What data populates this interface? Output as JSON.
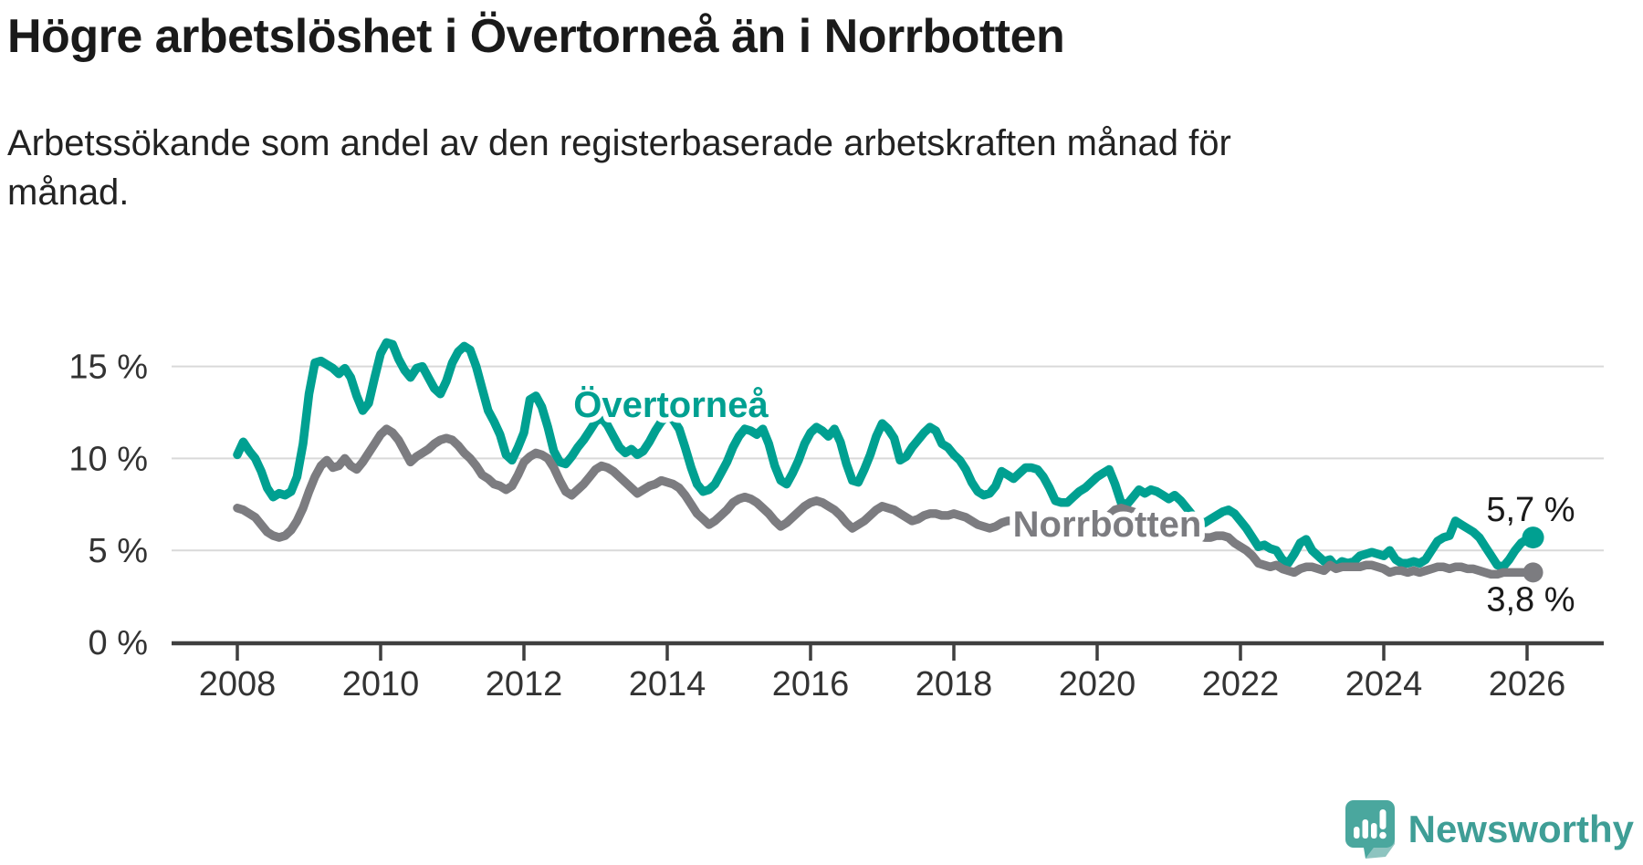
{
  "header": {
    "title": "Högre arbetslöshet i Övertorneå än i Norrbotten",
    "subtitle_lines": [
      "Arbetssökande som andel av den registerbaserade arbetskraften månad för",
      "månad."
    ]
  },
  "footer": {
    "brand": "Newsworthy"
  },
  "colors": {
    "overtornea": "#00a091",
    "norrbotten": "#7c7c80",
    "grid": "#d9d9d9",
    "axis": "#3f3f3f",
    "tick_text": "#333333",
    "value_label": "#1a1a1a",
    "logo_teal": "#4aa79e",
    "logo_shadow": "#31948c",
    "brand_text": "#3f9e96"
  },
  "chart_data": {
    "type": "line",
    "title": "Högre arbetslöshet i Övertorneå än i Norrbotten",
    "subtitle": "Arbetssökande som andel av den registerbaserade arbetskraften månad för månad.",
    "unit": "%",
    "freq": "monthly",
    "start": "2008-01",
    "end": "2026-02",
    "ylim": [
      0,
      17
    ],
    "grid": "horizontal",
    "y_ticks": [
      {
        "value": 15,
        "label": "15 %"
      },
      {
        "value": 10,
        "label": "10 %"
      },
      {
        "value": 5,
        "label": "5 %"
      },
      {
        "value": 0,
        "label": "0 %"
      }
    ],
    "x_ticks": [
      {
        "value": 2008,
        "label": "2008"
      },
      {
        "value": 2010,
        "label": "2010"
      },
      {
        "value": 2012,
        "label": "2012"
      },
      {
        "value": 2014,
        "label": "2014"
      },
      {
        "value": 2016,
        "label": "2016"
      },
      {
        "value": 2018,
        "label": "2018"
      },
      {
        "value": 2020,
        "label": "2020"
      },
      {
        "value": 2022,
        "label": "2022"
      },
      {
        "value": 2024,
        "label": "2024"
      },
      {
        "value": 2026,
        "label": "2026"
      }
    ],
    "series": [
      {
        "name": "Övertorneå",
        "color": "#00a091",
        "end_label": "5,7 %",
        "last_value": 5.7,
        "values": [
          10.2,
          10.9,
          10.4,
          10.0,
          9.3,
          8.4,
          7.9,
          8.1,
          8.0,
          8.2,
          9.0,
          10.8,
          13.5,
          15.2,
          15.3,
          15.1,
          14.9,
          14.6,
          14.9,
          14.4,
          13.4,
          12.6,
          13.0,
          14.4,
          15.7,
          16.3,
          16.2,
          15.4,
          14.8,
          14.4,
          14.9,
          15.0,
          14.4,
          13.8,
          13.5,
          14.2,
          15.2,
          15.8,
          16.1,
          15.9,
          15.0,
          13.8,
          12.6,
          12.0,
          11.3,
          10.2,
          9.9,
          10.6,
          11.4,
          13.2,
          13.4,
          12.8,
          11.7,
          10.4,
          9.8,
          9.7,
          10.1,
          10.6,
          11.0,
          11.5,
          12.0,
          12.2,
          11.8,
          11.2,
          10.6,
          10.3,
          10.5,
          10.2,
          10.4,
          10.9,
          11.5,
          12.0,
          12.3,
          12.1,
          11.6,
          10.6,
          9.5,
          8.6,
          8.2,
          8.3,
          8.6,
          9.2,
          9.8,
          10.6,
          11.2,
          11.6,
          11.5,
          11.3,
          11.6,
          10.8,
          9.6,
          8.8,
          8.6,
          9.2,
          9.9,
          10.8,
          11.4,
          11.7,
          11.5,
          11.2,
          11.6,
          10.9,
          9.7,
          8.8,
          8.7,
          9.4,
          10.2,
          11.2,
          11.9,
          11.6,
          11.1,
          9.9,
          10.1,
          10.6,
          11.0,
          11.4,
          11.7,
          11.5,
          10.8,
          10.6,
          10.2,
          9.9,
          9.4,
          8.7,
          8.2,
          8.0,
          8.1,
          8.5,
          9.3,
          9.1,
          8.9,
          9.2,
          9.5,
          9.5,
          9.4,
          9.0,
          8.4,
          7.7,
          7.6,
          7.6,
          7.9,
          8.2,
          8.4,
          8.7,
          9.0,
          9.2,
          9.4,
          8.6,
          7.6,
          7.5,
          7.9,
          8.3,
          8.1,
          8.3,
          8.2,
          8.0,
          7.8,
          8.0,
          7.7,
          7.3,
          6.9,
          6.6,
          6.5,
          6.7,
          6.9,
          7.1,
          7.2,
          7.0,
          6.6,
          6.2,
          5.7,
          5.2,
          5.3,
          5.1,
          5.0,
          4.5,
          4.3,
          4.8,
          5.4,
          5.6,
          5.0,
          4.7,
          4.4,
          4.5,
          4.1,
          4.4,
          4.3,
          4.4,
          4.7,
          4.8,
          4.9,
          4.8,
          4.7,
          5.0,
          4.5,
          4.3,
          4.3,
          4.4,
          4.3,
          4.5,
          5.0,
          5.5,
          5.7,
          5.8,
          6.6,
          6.4,
          6.2,
          6.0,
          5.7,
          5.2,
          4.7,
          4.2,
          4.1,
          4.5,
          5.0,
          5.4,
          5.6,
          5.7
        ]
      },
      {
        "name": "Norrbotten",
        "color": "#7c7c80",
        "end_label": "3,8 %",
        "last_value": 3.8,
        "values": [
          7.3,
          7.2,
          7.0,
          6.8,
          6.4,
          6.0,
          5.8,
          5.7,
          5.8,
          6.1,
          6.6,
          7.3,
          8.2,
          9.0,
          9.6,
          9.9,
          9.5,
          9.6,
          10.0,
          9.6,
          9.4,
          9.8,
          10.3,
          10.8,
          11.3,
          11.6,
          11.4,
          11.0,
          10.4,
          9.8,
          10.1,
          10.3,
          10.5,
          10.8,
          11.0,
          11.1,
          11.0,
          10.7,
          10.3,
          10.0,
          9.6,
          9.1,
          8.9,
          8.6,
          8.5,
          8.3,
          8.5,
          9.1,
          9.8,
          10.1,
          10.3,
          10.2,
          10.0,
          9.5,
          8.8,
          8.2,
          8.0,
          8.3,
          8.6,
          9.0,
          9.4,
          9.6,
          9.5,
          9.3,
          9.0,
          8.7,
          8.4,
          8.1,
          8.3,
          8.5,
          8.6,
          8.8,
          8.7,
          8.6,
          8.4,
          8.0,
          7.5,
          7.0,
          6.7,
          6.4,
          6.6,
          6.9,
          7.2,
          7.6,
          7.8,
          7.9,
          7.8,
          7.6,
          7.3,
          7.0,
          6.6,
          6.3,
          6.5,
          6.8,
          7.1,
          7.4,
          7.6,
          7.7,
          7.6,
          7.4,
          7.2,
          6.9,
          6.5,
          6.2,
          6.4,
          6.6,
          6.9,
          7.2,
          7.4,
          7.3,
          7.2,
          7.0,
          6.8,
          6.6,
          6.7,
          6.9,
          7.0,
          7.0,
          6.9,
          6.9,
          7.0,
          6.9,
          6.8,
          6.6,
          6.4,
          6.3,
          6.2,
          6.3,
          6.5,
          6.6,
          6.6,
          6.7,
          6.6,
          6.5,
          6.4,
          6.2,
          6.0,
          5.9,
          5.8,
          5.9,
          6.0,
          6.1,
          6.2,
          6.3,
          6.4,
          6.5,
          6.9,
          7.2,
          7.3,
          7.2,
          7.1,
          7.0,
          6.9,
          6.8,
          6.7,
          6.7,
          6.6,
          6.5,
          6.3,
          6.1,
          5.9,
          5.8,
          5.7,
          5.7,
          5.8,
          5.8,
          5.7,
          5.4,
          5.2,
          5.0,
          4.7,
          4.3,
          4.2,
          4.1,
          4.2,
          4.0,
          3.9,
          3.8,
          4.0,
          4.1,
          4.1,
          4.0,
          3.9,
          4.2,
          4.0,
          4.1,
          4.1,
          4.1,
          4.1,
          4.2,
          4.2,
          4.1,
          4.0,
          3.8,
          3.9,
          3.9,
          3.8,
          3.9,
          3.8,
          3.9,
          4.0,
          4.1,
          4.1,
          4.0,
          4.1,
          4.1,
          4.0,
          4.0,
          3.9,
          3.8,
          3.7,
          3.7,
          3.8,
          3.8,
          3.8,
          3.8,
          3.8,
          3.8
        ]
      }
    ]
  }
}
